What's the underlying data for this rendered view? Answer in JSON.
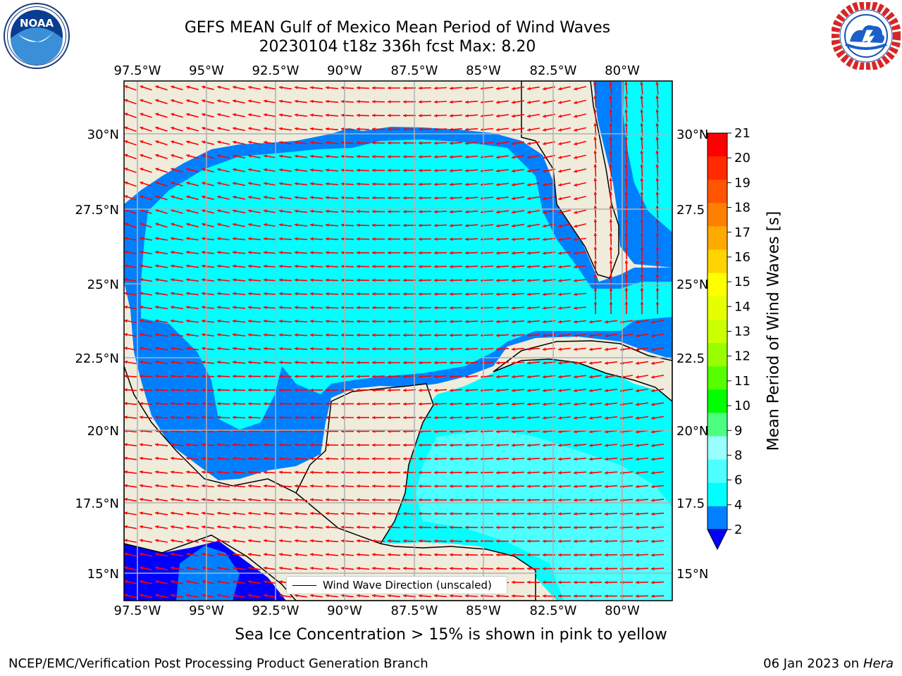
{
  "header": {
    "title_line1": "GEFS MEAN Gulf of Mexico Mean Period of Wind Waves",
    "title_line2": "20230104 t18z 336h fcst   Max: 8.20"
  },
  "logos": {
    "left": {
      "name": "noaa-logo",
      "text": "NOAA"
    },
    "right": {
      "name": "national-weather-service-logo",
      "text": "NATIONAL WEATHER SERVICE"
    }
  },
  "map": {
    "lon_ticks": [
      "97.5°W",
      "95°W",
      "92.5°W",
      "90°W",
      "87.5°W",
      "85°W",
      "82.5°W",
      "80°W"
    ],
    "lat_ticks_left": [
      "30°N",
      "27.5°N",
      "25°N",
      "22.5°N",
      "20°N",
      "17.5°N",
      "15°N"
    ],
    "lat_ticks_right": [
      "30°N",
      "27.5",
      "25°N",
      "22.5",
      "20°N",
      "17.5",
      "15°N"
    ],
    "colors": {
      "land": "#efecdc",
      "ocean_4_6": "#00ffff",
      "ocean_2_4": "#0080ff",
      "ocean_lt2": "#0000ff",
      "ocean_6_8": "#4dffff",
      "arrow": "#ff0000",
      "grid": "#b0b0b0"
    },
    "legend_label": "Wind Wave Direction (unscaled)"
  },
  "colorbar": {
    "label": "Mean Period of Wind Waves [s]",
    "ticks": [
      "21",
      "20",
      "19",
      "18",
      "17",
      "16",
      "15",
      "14",
      "13",
      "12",
      "11",
      "10",
      "9",
      "8",
      "6",
      "4",
      "2"
    ],
    "colors": [
      "#ff0000",
      "#ff2a00",
      "#ff5500",
      "#ff8000",
      "#ffaa00",
      "#ffd400",
      "#ffff00",
      "#e6ff00",
      "#ccff00",
      "#99ff00",
      "#55ff00",
      "#00ff00",
      "#4dff80",
      "#99ffff",
      "#4dffff",
      "#00ffff",
      "#0080ff"
    ],
    "extend_color": "#0000ff"
  },
  "notes": {
    "sea_ice": "Sea Ice Concentration > 15% is shown in pink to yellow"
  },
  "footer": {
    "left": "NCEP/EMC/Verification Post Processing Product Generation Branch",
    "right_date": "06 Jan 2023 on",
    "right_host": "Hera"
  }
}
